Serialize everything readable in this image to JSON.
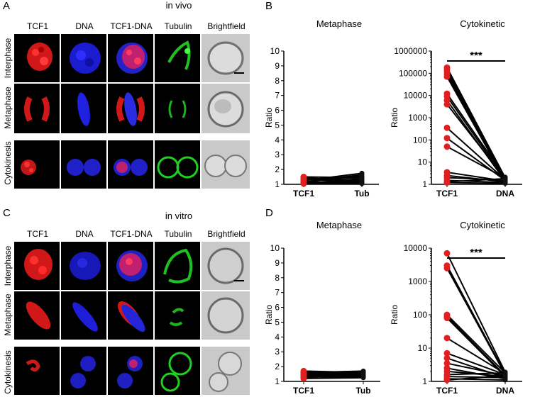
{
  "figure": {
    "panels": [
      {
        "letter": "A",
        "condition": "in vivo"
      },
      {
        "letter": "B"
      },
      {
        "letter": "C",
        "condition": "in vitro"
      },
      {
        "letter": "D"
      }
    ],
    "columns": [
      "TCF1",
      "DNA",
      "TCF1-DNA",
      "Tubulin",
      "Brightfield"
    ],
    "rows": [
      "Interphase",
      "Metaphase",
      "Cytokinesis"
    ]
  },
  "chart_data": [
    {
      "id": "B-metaphase",
      "type": "line",
      "title": "Metaphase",
      "ylabel": "Ratio",
      "categories": [
        "TCF1",
        "Tub"
      ],
      "ylim": [
        1,
        10
      ],
      "yscale": "linear",
      "yticks": [
        "1",
        "2",
        "3",
        "4",
        "5",
        "6",
        "7",
        "8",
        "9",
        "10"
      ],
      "pairs": [
        [
          1.45,
          1.2
        ],
        [
          1.4,
          1.35
        ],
        [
          1.3,
          1.55
        ],
        [
          1.25,
          1.75
        ],
        [
          1.2,
          1.1
        ],
        [
          1.15,
          1.65
        ],
        [
          1.1,
          1.3
        ],
        [
          1.05,
          1.05
        ],
        [
          1.35,
          1.15
        ],
        [
          1.5,
          1.45
        ],
        [
          1.1,
          1.2
        ],
        [
          1.2,
          1.05
        ]
      ]
    },
    {
      "id": "B-cytokinetic",
      "type": "line",
      "title": "Cytokinetic",
      "ylabel": "Ratio",
      "categories": [
        "TCF1",
        "DNA"
      ],
      "ylim": [
        1,
        1000000
      ],
      "yscale": "log",
      "yticks": [
        "1",
        "10",
        "100",
        "1000",
        "10000",
        "100000",
        "1000000"
      ],
      "significance": "***",
      "pairs": [
        [
          180000,
          2.0
        ],
        [
          150000,
          1.8
        ],
        [
          120000,
          1.6
        ],
        [
          90000,
          1.9
        ],
        [
          70000,
          1.5
        ],
        [
          12000,
          2.1
        ],
        [
          9000,
          1.7
        ],
        [
          6000,
          1.4
        ],
        [
          4000,
          1.8
        ],
        [
          350,
          1.6
        ],
        [
          120,
          1.5
        ],
        [
          50,
          1.9
        ],
        [
          3.5,
          1.4
        ],
        [
          2.5,
          1.3
        ],
        [
          2.0,
          1.5
        ],
        [
          1.5,
          1.2
        ],
        [
          1.3,
          1.8
        ],
        [
          1.2,
          1.1
        ]
      ]
    },
    {
      "id": "D-metaphase",
      "type": "line",
      "title": "Metaphase",
      "ylabel": "Ratio",
      "categories": [
        "TCF1",
        "Tub"
      ],
      "ylim": [
        1,
        10
      ],
      "yscale": "linear",
      "yticks": [
        "1",
        "2",
        "3",
        "4",
        "5",
        "6",
        "7",
        "8",
        "9",
        "10"
      ],
      "pairs": [
        [
          1.7,
          1.6
        ],
        [
          1.65,
          1.5
        ],
        [
          1.6,
          1.7
        ],
        [
          1.55,
          1.45
        ],
        [
          1.5,
          1.65
        ],
        [
          1.45,
          1.35
        ],
        [
          1.4,
          1.55
        ],
        [
          1.35,
          1.4
        ],
        [
          1.3,
          1.3
        ],
        [
          1.25,
          1.5
        ],
        [
          1.2,
          1.25
        ],
        [
          1.6,
          1.35
        ]
      ]
    },
    {
      "id": "D-cytokinetic",
      "type": "line",
      "title": "Cytokinetic",
      "ylabel": "Ratio",
      "categories": [
        "TCF1",
        "DNA"
      ],
      "ylim": [
        1,
        10000
      ],
      "yscale": "log",
      "yticks": [
        "1",
        "10",
        "100",
        "1000",
        "10000"
      ],
      "significance": "***",
      "pairs": [
        [
          7000,
          1.9
        ],
        [
          3000,
          1.7
        ],
        [
          2500,
          1.6
        ],
        [
          100,
          1.8
        ],
        [
          90,
          1.5
        ],
        [
          80,
          1.4
        ],
        [
          20,
          1.7
        ],
        [
          7,
          1.6
        ],
        [
          5,
          1.3
        ],
        [
          3.5,
          1.5
        ],
        [
          2.5,
          1.2
        ],
        [
          2.0,
          1.4
        ],
        [
          1.6,
          1.8
        ],
        [
          1.4,
          1.3
        ],
        [
          1.2,
          1.1
        ],
        [
          1.1,
          1.5
        ]
      ]
    }
  ]
}
